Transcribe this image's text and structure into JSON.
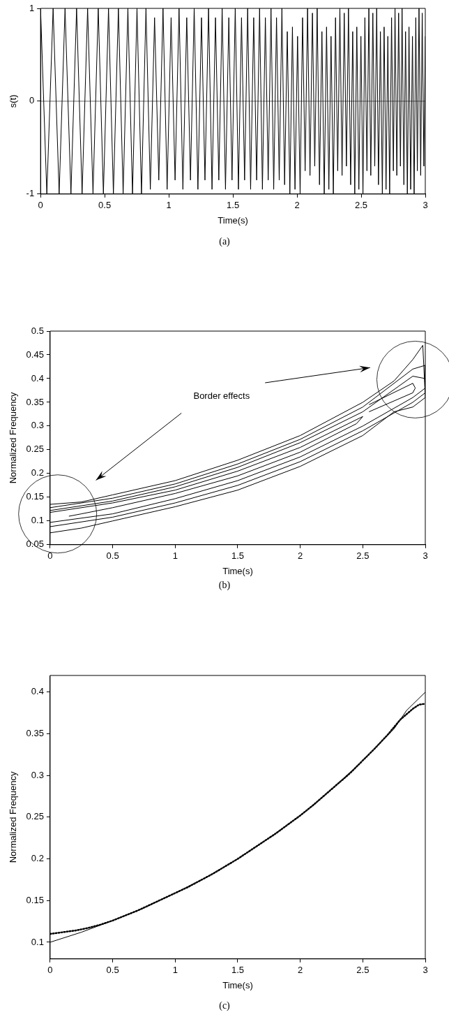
{
  "chart_data": [
    {
      "type": "line",
      "xlabel": "Time(s)",
      "ylabel": "s(t)",
      "xlim": [
        0,
        3
      ],
      "ylim": [
        -1,
        1
      ],
      "xticks": [
        0,
        0.5,
        1,
        1.5,
        2,
        2.5,
        3
      ],
      "yticks": [
        -1,
        0,
        1
      ],
      "grid": false,
      "marker": "none",
      "line_style": "solid",
      "annotations": [
        "(a)"
      ],
      "ref_lines": [
        {
          "axis": "y",
          "value": 0,
          "color": "#000000"
        }
      ],
      "series": [
        {
          "color": "#000000",
          "x": [
            0,
            0.049,
            0.098,
            0.145,
            0.191,
            0.237,
            0.281,
            0.324,
            0.367,
            0.409,
            0.45,
            0.49,
            0.53,
            0.568,
            0.607,
            0.644,
            0.681,
            0.717,
            0.752,
            0.787,
            0.822,
            0.856,
            0.889,
            0.922,
            0.955,
            0.987,
            1.018,
            1.049,
            1.08,
            1.11,
            1.14,
            1.169,
            1.198,
            1.227,
            1.255,
            1.282,
            1.31,
            1.337,
            1.364,
            1.39,
            1.416,
            1.442,
            1.468,
            1.493,
            1.518,
            1.543,
            1.567,
            1.591,
            1.615,
            1.638,
            1.662,
            1.685,
            1.708,
            1.73,
            1.753,
            1.775,
            1.797,
            1.818,
            1.84,
            1.861,
            1.882,
            1.903,
            1.924,
            1.944,
            1.964,
            1.984,
            2.004,
            2.024,
            2.043,
            2.063,
            2.082,
            2.101,
            2.12,
            2.138,
            2.157,
            2.175,
            2.194,
            2.212,
            2.23,
            2.248,
            2.265,
            2.283,
            2.3,
            2.317,
            2.334,
            2.351,
            2.368,
            2.385,
            2.401,
            2.418,
            2.434,
            2.45,
            2.466,
            2.482,
            2.498,
            2.514,
            2.529,
            2.545,
            2.56,
            2.575,
            2.591,
            2.606,
            2.621,
            2.635,
            2.65,
            2.665,
            2.679,
            2.694,
            2.708,
            2.722,
            2.737,
            2.751,
            2.764,
            2.778,
            2.792,
            2.806,
            2.819,
            2.833,
            2.846,
            2.86,
            2.873,
            2.886,
            2.9,
            2.913,
            2.926,
            2.938,
            2.951,
            2.964,
            2.976,
            2.989,
            3
          ],
          "values": [
            1,
            -1,
            1,
            -1,
            1,
            -1,
            1,
            -1,
            1,
            -1,
            1,
            -1,
            1,
            -1,
            1,
            -1,
            1,
            -1,
            1,
            -1,
            1,
            -0.95,
            0.9,
            -0.85,
            1,
            -0.95,
            0.9,
            -0.85,
            1,
            -0.95,
            0.9,
            -0.85,
            1,
            -0.95,
            0.9,
            -0.85,
            1,
            -0.95,
            0.9,
            -0.85,
            1,
            -0.95,
            0.9,
            -0.85,
            1,
            -0.95,
            0.9,
            -0.85,
            1,
            -0.95,
            0.9,
            -0.85,
            1,
            -0.95,
            0.9,
            -0.85,
            1,
            -0.95,
            0.9,
            -0.85,
            1,
            -0.9,
            0.75,
            -1,
            0.8,
            -0.95,
            0.7,
            -1,
            0.9,
            -0.75,
            1,
            -0.8,
            0.95,
            -0.7,
            1,
            -0.9,
            0.75,
            -1,
            0.8,
            -0.95,
            0.7,
            -1,
            0.9,
            -0.75,
            1,
            -0.8,
            0.95,
            -0.7,
            1,
            -0.9,
            0.75,
            -1,
            0.8,
            -0.95,
            0.7,
            -1,
            0.9,
            -0.75,
            1,
            -0.8,
            0.95,
            -0.7,
            1,
            -0.9,
            0.75,
            -1,
            0.8,
            -0.95,
            0.7,
            -1,
            0.9,
            -0.75,
            1,
            -0.8,
            0.95,
            -0.7,
            1,
            -0.9,
            0.75,
            -1,
            0.8,
            -0.95,
            0.7,
            -1,
            0.9,
            -0.75,
            1,
            -0.8,
            0.95,
            -0.7,
            0.7
          ]
        }
      ]
    },
    {
      "type": "line",
      "xlabel": "Time(s)",
      "ylabel": "Normalized Frequency",
      "xlim": [
        0,
        3
      ],
      "ylim": [
        0.05,
        0.5
      ],
      "xticks": [
        0,
        0.5,
        1,
        1.5,
        2,
        2.5,
        3
      ],
      "yticks": [
        0.05,
        0.1,
        0.15,
        0.2,
        0.25,
        0.3,
        0.35,
        0.4,
        0.45,
        0.5
      ],
      "grid": false,
      "marker": "none",
      "line_style": "solid",
      "annotations": [
        "Border effects",
        "(b)"
      ],
      "series": [
        {
          "color": "#000000",
          "x": [
            0,
            0.25,
            0.5,
            1,
            1.5,
            2,
            2.5,
            2.75,
            2.9,
            2.98,
            3,
            2.9,
            2.75,
            2.5,
            2,
            1.5,
            1,
            0.5,
            0.25,
            0
          ],
          "values": [
            0.135,
            0.14,
            0.155,
            0.185,
            0.228,
            0.28,
            0.35,
            0.395,
            0.44,
            0.47,
            0.36,
            0.34,
            0.33,
            0.28,
            0.215,
            0.165,
            0.13,
            0.1,
            0.085,
            0.075
          ]
        },
        {
          "color": "#000000",
          "x": [
            0,
            0.5,
            1,
            1.5,
            2,
            2.5,
            2.9,
            3,
            3,
            2.9,
            2.5,
            2,
            1.5,
            1,
            0.5,
            0
          ],
          "values": [
            0.128,
            0.148,
            0.178,
            0.22,
            0.272,
            0.34,
            0.42,
            0.428,
            0.37,
            0.35,
            0.29,
            0.225,
            0.175,
            0.138,
            0.108,
            0.088
          ]
        },
        {
          "color": "#000000",
          "x": [
            0,
            0.5,
            1,
            1.5,
            2,
            2.5,
            2.9,
            3,
            3,
            2.9,
            2.5,
            2,
            1.5,
            1,
            0.5,
            0
          ],
          "values": [
            0.122,
            0.142,
            0.172,
            0.213,
            0.265,
            0.33,
            0.405,
            0.4,
            0.38,
            0.36,
            0.3,
            0.235,
            0.185,
            0.147,
            0.115,
            0.097
          ]
        },
        {
          "color": "#000000",
          "x": [
            0,
            0.5,
            1,
            1.5,
            2,
            2.5,
            2.45,
            2,
            1.5,
            1,
            0.5,
            0.25,
            0.15
          ],
          "values": [
            0.118,
            0.138,
            0.165,
            0.205,
            0.255,
            0.32,
            0.305,
            0.245,
            0.195,
            0.158,
            0.128,
            0.115,
            0.11
          ]
        },
        {
          "color": "#000000",
          "x": [
            2.55,
            2.9,
            2.92,
            2.9,
            2.55
          ],
          "values": [
            0.345,
            0.39,
            0.38,
            0.37,
            0.33
          ]
        }
      ]
    },
    {
      "type": "line",
      "xlabel": "Time(s)",
      "ylabel": "Normalized Frequency",
      "xlim": [
        0,
        3
      ],
      "ylim": [
        0.08,
        0.42
      ],
      "xticks": [
        0,
        0.5,
        1,
        1.5,
        2,
        2.5,
        3
      ],
      "yticks": [
        0.1,
        0.15,
        0.2,
        0.25,
        0.3,
        0.35,
        0.4
      ],
      "grid": false,
      "marker": "none",
      "annotations": [
        "(c)"
      ],
      "series": [
        {
          "color": "#000000",
          "line_style": "solid",
          "x": [
            0,
            0.25,
            0.5,
            0.75,
            1,
            1.25,
            1.5,
            1.75,
            2,
            2.25,
            2.5,
            2.75,
            2.85,
            3
          ],
          "values": [
            0.1,
            0.112,
            0.126,
            0.141,
            0.159,
            0.178,
            0.2,
            0.225,
            0.252,
            0.283,
            0.318,
            0.356,
            0.378,
            0.4
          ]
        },
        {
          "color": "#000000",
          "line_style": "dotted",
          "x": [
            0,
            0.1,
            0.2,
            0.3,
            0.4,
            0.5,
            0.6,
            0.7,
            0.8,
            0.9,
            1,
            1.1,
            1.2,
            1.3,
            1.4,
            1.5,
            1.6,
            1.7,
            1.8,
            1.9,
            2,
            2.1,
            2.2,
            2.3,
            2.4,
            2.5,
            2.6,
            2.7,
            2.8,
            2.9,
            2.95,
            3
          ],
          "values": [
            0.11,
            0.112,
            0.114,
            0.117,
            0.121,
            0.126,
            0.132,
            0.138,
            0.145,
            0.152,
            0.159,
            0.166,
            0.174,
            0.182,
            0.191,
            0.2,
            0.21,
            0.22,
            0.23,
            0.241,
            0.252,
            0.264,
            0.277,
            0.29,
            0.303,
            0.318,
            0.333,
            0.349,
            0.367,
            0.38,
            0.385,
            0.386
          ]
        }
      ]
    }
  ]
}
